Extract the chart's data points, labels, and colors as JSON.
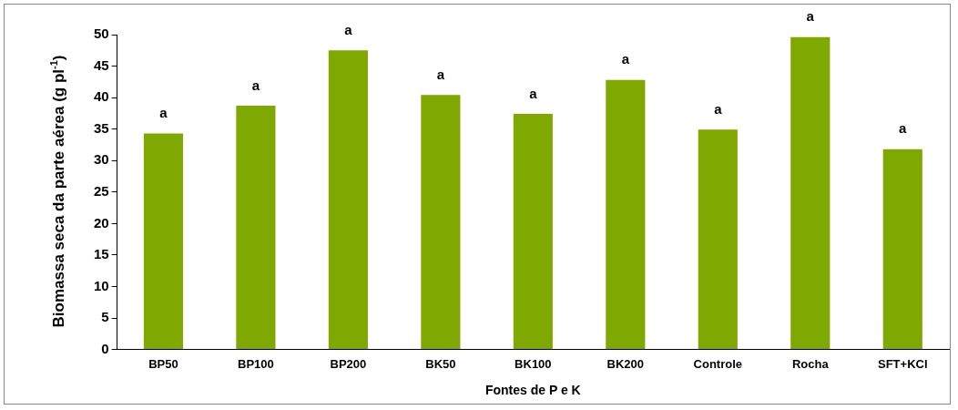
{
  "chart_data": {
    "type": "bar",
    "xlabel": "Fontes de P e K",
    "ylabel": "Biomassa seca da parte aérea (g pl$^{-1}$)",
    "categories": [
      "BP50",
      "BP100",
      "BP200",
      "BK50",
      "BK100",
      "BK200",
      "Controle",
      "Rocha",
      "SFT+KCl"
    ],
    "values": [
      34.3,
      38.7,
      47.5,
      40.4,
      37.4,
      42.8,
      34.9,
      49.6,
      31.8
    ],
    "color": "#7fa800",
    "ylim": [
      0,
      50
    ],
    "yticks": [
      0,
      5,
      10,
      15,
      20,
      25,
      30,
      35,
      40,
      45,
      50
    ],
    "grid": false,
    "legend": false,
    "annotations": [
      {
        "text": "a",
        "x": "BP50",
        "y": 34.3
      },
      {
        "text": "a",
        "x": "BP100",
        "y": 38.7
      },
      {
        "text": "a",
        "x": "BP200",
        "y": 47.5
      },
      {
        "text": "a",
        "x": "BK50",
        "y": 40.4
      },
      {
        "text": "a",
        "x": "BK100",
        "y": 37.4
      },
      {
        "text": "a",
        "x": "BK200",
        "y": 42.8
      },
      {
        "text": "a",
        "x": "Controle",
        "y": 34.9
      },
      {
        "text": "a",
        "x": "Rocha",
        "y": 49.6
      },
      {
        "text": "a",
        "x": "SFT+KCl",
        "y": 31.8
      }
    ]
  }
}
